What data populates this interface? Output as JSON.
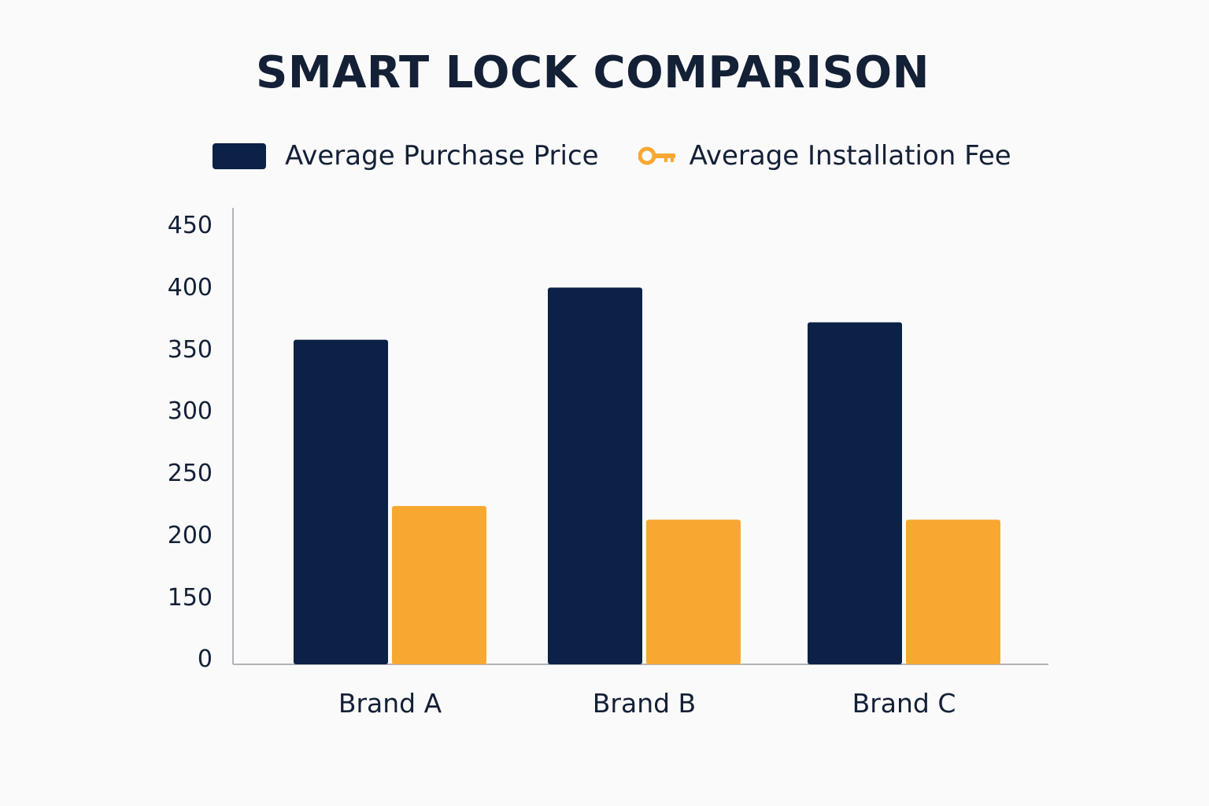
{
  "colors": {
    "purchase": "#0b2146",
    "installation": "#f7a830",
    "axis": "#b0b3b8"
  },
  "legend": {
    "purchase_label": "Average Purchase Price",
    "purchase_icon": "bar-swatch",
    "installation_label": "Average Installation Fee",
    "installation_icon": "key-icon"
  },
  "chart_data": {
    "type": "bar",
    "title": "SMART LOCK COMPARISON",
    "xlabel": "",
    "ylabel": "",
    "categories": [
      "Brand A",
      "Brand B",
      "Brand C"
    ],
    "series": [
      {
        "name": "Average Purchase Price",
        "values": [
          357,
          399,
          371
        ]
      },
      {
        "name": "Average Installation Fee",
        "values": [
          223,
          212,
          212
        ]
      }
    ],
    "y_ticks": [
      {
        "label": "0",
        "value": 0
      },
      {
        "label": "150",
        "value": 150
      },
      {
        "label": "200",
        "value": 200
      },
      {
        "label": "250",
        "value": 250
      },
      {
        "label": "300",
        "value": 300
      },
      {
        "label": "350",
        "value": 350
      },
      {
        "label": "400",
        "value": 400
      },
      {
        "label": "450",
        "value": 450
      }
    ],
    "ylim": [
      0,
      450
    ],
    "grid": false,
    "legend_position": "top"
  }
}
